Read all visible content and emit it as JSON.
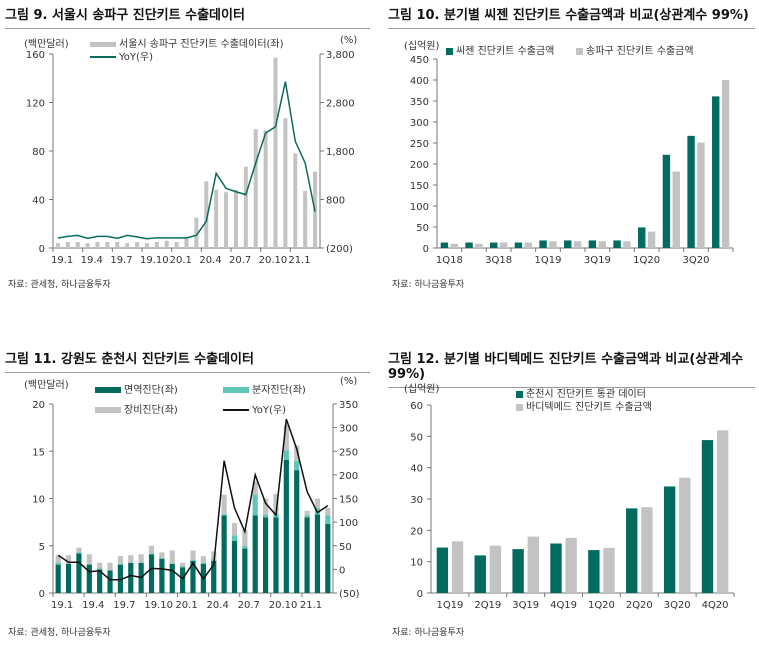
{
  "colors": {
    "green": "#006b5e",
    "teal": "#5fc7b7",
    "gray": "#c3c3c3",
    "yoy_green": "#0a6b5d",
    "yoy_black": "#111111"
  },
  "chart_data": [
    {
      "type": "bar+line",
      "title": "그림 9. 서울시 송파구 진단키트 수출데이터",
      "source": "자료: 관세청, 하나금융투자",
      "ylabel": "(백만달러)",
      "y2label": "(%)",
      "ylim": [
        0,
        160
      ],
      "y2lim": [
        -200,
        3800
      ],
      "yticks": [
        "0",
        "40",
        "80",
        "120",
        "160"
      ],
      "y2ticks": [
        "(200)",
        "800",
        "1,800",
        "2,800",
        "3,800"
      ],
      "xticks": [
        "19.1",
        "19.4",
        "19.7",
        "19.10",
        "20.1",
        "20.4",
        "20.7",
        "20.10",
        "21.1"
      ],
      "categories": [
        "19.1",
        "19.2",
        "19.3",
        "19.4",
        "19.5",
        "19.6",
        "19.7",
        "19.8",
        "19.9",
        "19.10",
        "19.11",
        "19.12",
        "20.1",
        "20.2",
        "20.3",
        "20.4",
        "20.5",
        "20.6",
        "20.7",
        "20.8",
        "20.9",
        "20.10",
        "20.11",
        "20.12",
        "21.1",
        "21.2",
        "21.3"
      ],
      "series": [
        {
          "name": "서울시 송파구 진단키트 수출데이터(좌)",
          "type": "bar",
          "values": [
            4,
            5,
            5,
            4,
            5,
            5,
            5,
            4,
            5,
            4,
            5,
            6,
            5,
            8,
            25,
            55,
            48,
            46,
            48,
            67,
            98,
            97,
            157,
            107,
            78,
            47,
            63
          ]
        },
        {
          "name": "YoY(우)",
          "type": "line",
          "axis": "right",
          "values": [
            6,
            40,
            60,
            0,
            40,
            40,
            0,
            60,
            30,
            -10,
            10,
            10,
            10,
            10,
            60,
            350,
            1340,
            1030,
            960,
            900,
            1550,
            2170,
            2300,
            3230,
            2000,
            1550,
            550
          ]
        }
      ],
      "legend": "top"
    },
    {
      "type": "bar",
      "title": "그림 10. 분기별 씨젠 진단키트 수출금액과 비교(상관계수 99%)",
      "source": "자료:  하나금융투자",
      "ylabel": "(십억원)",
      "ylim": [
        0,
        450
      ],
      "yticks": [
        "0",
        "50",
        "100",
        "150",
        "200",
        "250",
        "300",
        "350",
        "400",
        "450"
      ],
      "xticks": [
        "1Q18",
        "",
        "3Q18",
        "",
        "1Q19",
        "",
        "3Q19",
        "",
        "1Q20",
        "",
        "3Q20",
        ""
      ],
      "categories": [
        "1Q18",
        "2Q18",
        "3Q18",
        "4Q18",
        "1Q19",
        "2Q19",
        "3Q19",
        "4Q19",
        "1Q20",
        "2Q20",
        "3Q20",
        "4Q20"
      ],
      "series": [
        {
          "name": "씨젠 진단키트 수출금액",
          "values": [
            13,
            13,
            13,
            13,
            18,
            18,
            18,
            18,
            49,
            222,
            267,
            361
          ]
        },
        {
          "name": "송파구 진단키트 수출금액",
          "values": [
            10,
            10,
            13,
            13,
            16,
            16,
            16,
            16,
            39,
            182,
            251,
            400
          ]
        }
      ],
      "legend": "top"
    },
    {
      "type": "stacked-bar+line",
      "title": "그림 11. 강원도 춘천시 진단키트 수출데이터",
      "source": "자료: 관세청, 하나금융투자",
      "ylabel": "(백만달러)",
      "y2label": "(%)",
      "ylim": [
        0,
        20
      ],
      "y2lim": [
        -50,
        350
      ],
      "yticks": [
        "0",
        "5",
        "10",
        "15",
        "20"
      ],
      "y2ticks": [
        "(50)",
        "0",
        "50",
        "100",
        "150",
        "200",
        "250",
        "300",
        "350"
      ],
      "xticks": [
        "19.1",
        "19.4",
        "19.7",
        "19.10",
        "20.1",
        "20.4",
        "20.7",
        "20.10",
        "21.1"
      ],
      "categories": [
        "19.1",
        "19.2",
        "19.3",
        "19.4",
        "19.5",
        "19.6",
        "19.7",
        "19.8",
        "19.9",
        "19.10",
        "19.11",
        "19.12",
        "20.1",
        "20.2",
        "20.3",
        "20.4",
        "20.5",
        "20.6",
        "20.7",
        "20.8",
        "20.9",
        "20.10",
        "20.11",
        "20.12",
        "21.1",
        "21.2",
        "21.3"
      ],
      "series": [
        {
          "name": "면역진단(좌)",
          "values": [
            3.0,
            3.1,
            4.2,
            3.0,
            2.5,
            2.4,
            3.0,
            3.2,
            3.2,
            4.1,
            3.6,
            3.1,
            2.7,
            3.4,
            3.1,
            3.4,
            8.2,
            5.5,
            4.7,
            8.2,
            8.0,
            8.0,
            14.1,
            13.0,
            8.0,
            8.3,
            7.3
          ]
        },
        {
          "name": "분자진단(좌)",
          "values": [
            0.2,
            0,
            0.1,
            0.1,
            0.1,
            0,
            0.1,
            0,
            0,
            0.1,
            0.1,
            0,
            0.1,
            0.1,
            0.1,
            0.2,
            0.1,
            0.6,
            0.3,
            2.2,
            0.3,
            0.4,
            1.0,
            1.0,
            0.2,
            0.7,
            0.9
          ]
        },
        {
          "name": "장비진단(좌)",
          "values": [
            0.8,
            0.9,
            0.5,
            1.0,
            0.6,
            0.8,
            0.8,
            0.8,
            0.9,
            0.8,
            0.6,
            1.4,
            0.4,
            1.0,
            0.7,
            0.8,
            2.1,
            1.3,
            1.7,
            1.4,
            1.7,
            2.1,
            2.7,
            1.6,
            0.5,
            1.0,
            0.8
          ]
        },
        {
          "name": "YoY(우)",
          "type": "line",
          "axis": "right",
          "values": [
            30,
            15,
            15,
            -5,
            -3,
            -22,
            -22,
            -13,
            -17,
            2,
            1,
            -2,
            -20,
            13,
            -20,
            10,
            230,
            130,
            80,
            200,
            140,
            115,
            318,
            255,
            165,
            120,
            135
          ]
        }
      ],
      "legend": "top"
    },
    {
      "type": "bar",
      "title": "그림 12. 분기별 바디텍메드 진단키트 수출금액과 비교(상관계수 99%)",
      "source": "자료:  하나금융투자",
      "ylabel": "(십억원)",
      "ylim": [
        0,
        60
      ],
      "yticks": [
        "0",
        "10",
        "20",
        "30",
        "40",
        "50",
        "60"
      ],
      "xticks": [
        "1Q19",
        "2Q19",
        "3Q19",
        "4Q19",
        "1Q20",
        "2Q20",
        "3Q20",
        "4Q20"
      ],
      "categories": [
        "1Q19",
        "2Q19",
        "3Q19",
        "4Q19",
        "1Q20",
        "2Q20",
        "3Q20",
        "4Q20"
      ],
      "series": [
        {
          "name": "춘천시 진단키트 통관 데이터",
          "values": [
            14.5,
            12,
            14,
            15.8,
            13.7,
            27,
            34,
            48.8
          ]
        },
        {
          "name": "바디텍메드 진단키트 수출금액",
          "values": [
            16.5,
            15.1,
            18,
            17.6,
            14.4,
            27.4,
            36.8,
            51.9
          ]
        }
      ],
      "legend": "top"
    }
  ]
}
